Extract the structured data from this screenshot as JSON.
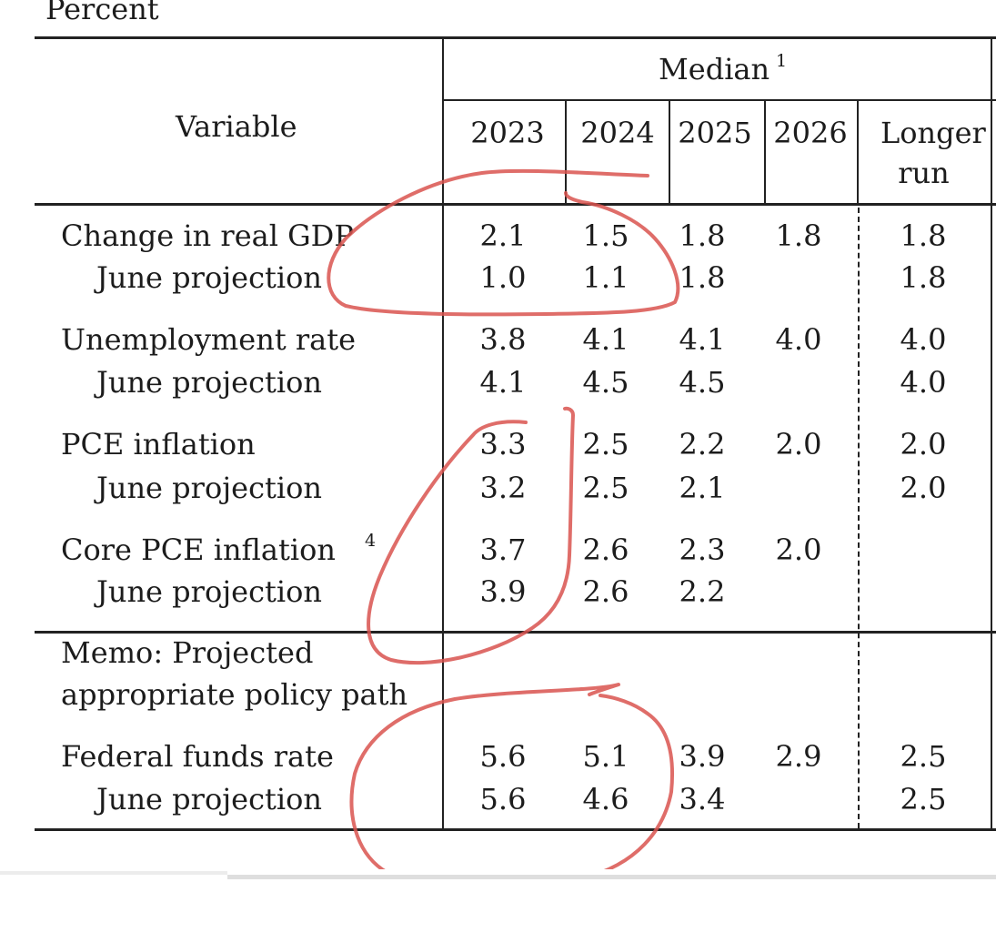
{
  "units_label": "Percent",
  "header": {
    "variable": "Variable",
    "median": "Median",
    "median_footnote": "1",
    "years": [
      "2023",
      "2024",
      "2025",
      "2026"
    ],
    "longer_run_line1": "Longer",
    "longer_run_line2": "run"
  },
  "rows": [
    {
      "label": "Change in real GDP",
      "footnote": "",
      "values": [
        "2.1",
        "1.5",
        "1.8",
        "1.8",
        "1.8"
      ]
    },
    {
      "label": "June projection",
      "footnote": "",
      "values": [
        "1.0",
        "1.1",
        "1.8",
        "",
        "1.8"
      ]
    },
    {
      "label": "Unemployment rate",
      "footnote": "",
      "values": [
        "3.8",
        "4.1",
        "4.1",
        "4.0",
        "4.0"
      ]
    },
    {
      "label": "June projection",
      "footnote": "",
      "values": [
        "4.1",
        "4.5",
        "4.5",
        "",
        "4.0"
      ]
    },
    {
      "label": "PCE inflation",
      "footnote": "",
      "values": [
        "3.3",
        "2.5",
        "2.2",
        "2.0",
        "2.0"
      ]
    },
    {
      "label": "June projection",
      "footnote": "",
      "values": [
        "3.2",
        "2.5",
        "2.1",
        "",
        "2.0"
      ]
    },
    {
      "label": "Core PCE inflation",
      "footnote": "4",
      "values": [
        "3.7",
        "2.6",
        "2.3",
        "2.0",
        ""
      ]
    },
    {
      "label": "June projection",
      "footnote": "",
      "values": [
        "3.9",
        "2.6",
        "2.2",
        "",
        ""
      ]
    }
  ],
  "memo": {
    "line1": "Memo: Projected",
    "line2": "appropriate policy path"
  },
  "memo_rows": [
    {
      "label": "Federal funds rate",
      "values": [
        "5.6",
        "5.1",
        "3.9",
        "2.9",
        "2.5"
      ]
    },
    {
      "label": "June projection",
      "values": [
        "5.6",
        "4.6",
        "3.4",
        "",
        "2.5"
      ]
    }
  ],
  "annotation": {
    "stroke_color": "#d9534f"
  }
}
